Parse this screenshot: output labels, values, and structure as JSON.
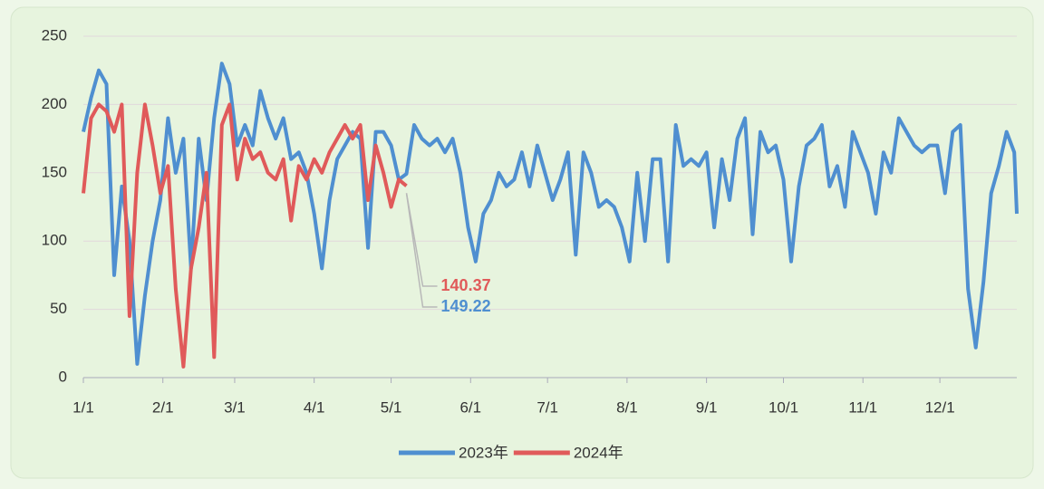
{
  "chart_data": {
    "type": "line",
    "xlim": [
      1,
      365
    ],
    "xticks": [
      {
        "value": 1,
        "label": "1/1"
      },
      {
        "value": 32,
        "label": "2/1"
      },
      {
        "value": 60,
        "label": "3/1"
      },
      {
        "value": 91,
        "label": "4/1"
      },
      {
        "value": 121,
        "label": "5/1"
      },
      {
        "value": 152,
        "label": "6/1"
      },
      {
        "value": 182,
        "label": "7/1"
      },
      {
        "value": 213,
        "label": "8/1"
      },
      {
        "value": 244,
        "label": "9/1"
      },
      {
        "value": 274,
        "label": "10/1"
      },
      {
        "value": 305,
        "label": "11/1"
      },
      {
        "value": 335,
        "label": "12/1"
      }
    ],
    "ylim": [
      0,
      250
    ],
    "yticks": [
      0,
      50,
      100,
      150,
      200,
      250
    ],
    "grid": true,
    "legend": "bottom",
    "series": [
      {
        "name": "2023年",
        "color": "#4f8fd0",
        "x": [
          1,
          4,
          7,
          10,
          13,
          16,
          19,
          22,
          25,
          28,
          31,
          34,
          37,
          40,
          43,
          46,
          49,
          52,
          55,
          58,
          61,
          64,
          67,
          70,
          73,
          76,
          79,
          82,
          85,
          88,
          91,
          94,
          97,
          100,
          103,
          106,
          109,
          112,
          115,
          118,
          121,
          124,
          127,
          130,
          133,
          136,
          139,
          142,
          145,
          148,
          151,
          154,
          157,
          160,
          163,
          166,
          169,
          172,
          175,
          178,
          181,
          184,
          187,
          190,
          193,
          196,
          199,
          202,
          205,
          208,
          211,
          214,
          217,
          220,
          223,
          226,
          229,
          232,
          235,
          238,
          241,
          244,
          247,
          250,
          253,
          256,
          259,
          262,
          265,
          268,
          271,
          274,
          277,
          280,
          283,
          286,
          289,
          292,
          295,
          298,
          301,
          304,
          307,
          310,
          313,
          316,
          319,
          322,
          325,
          328,
          331,
          334,
          337,
          340,
          343,
          346,
          349,
          352,
          355,
          358,
          361,
          364,
          365
        ],
        "values": [
          180,
          205,
          225,
          215,
          75,
          140,
          100,
          10,
          60,
          100,
          130,
          190,
          150,
          175,
          80,
          175,
          130,
          190,
          230,
          215,
          170,
          185,
          170,
          210,
          190,
          175,
          190,
          160,
          165,
          150,
          120,
          80,
          130,
          160,
          170,
          180,
          175,
          95,
          180,
          180,
          170,
          145,
          149.22,
          185,
          175,
          170,
          175,
          165,
          175,
          150,
          110,
          85,
          120,
          130,
          150,
          140,
          145,
          165,
          140,
          170,
          150,
          130,
          145,
          165,
          90,
          165,
          150,
          125,
          130,
          125,
          110,
          85,
          150,
          100,
          160,
          160,
          85,
          185,
          155,
          160,
          155,
          165,
          110,
          160,
          130,
          175,
          190,
          105,
          180,
          165,
          170,
          145,
          85,
          140,
          170,
          175,
          185,
          140,
          155,
          125,
          180,
          165,
          150,
          120,
          165,
          150,
          190,
          180,
          170,
          165,
          170,
          170,
          135,
          180,
          185,
          65,
          22,
          70,
          135,
          155,
          180,
          165,
          120
        ]
      },
      {
        "name": "2024年",
        "color": "#e05a5a",
        "x": [
          1,
          4,
          7,
          10,
          13,
          16,
          19,
          22,
          25,
          28,
          31,
          34,
          37,
          40,
          43,
          46,
          49,
          52,
          55,
          58,
          61,
          64,
          67,
          70,
          73,
          76,
          79,
          82,
          85,
          88,
          91,
          94,
          97,
          100,
          103,
          106,
          109,
          112,
          115,
          118,
          121,
          124,
          127
        ],
        "values": [
          135,
          190,
          200,
          195,
          180,
          200,
          45,
          150,
          200,
          170,
          135,
          155,
          65,
          8,
          80,
          110,
          150,
          15,
          185,
          200,
          145,
          175,
          160,
          165,
          150,
          145,
          160,
          115,
          155,
          145,
          160,
          150,
          165,
          175,
          185,
          175,
          185,
          130,
          170,
          150,
          125,
          145,
          140.37
        ]
      }
    ],
    "annotations": [
      {
        "text": "140.37",
        "color": "#e05a5a"
      },
      {
        "text": "149.22",
        "color": "#4f8fd0"
      }
    ]
  }
}
